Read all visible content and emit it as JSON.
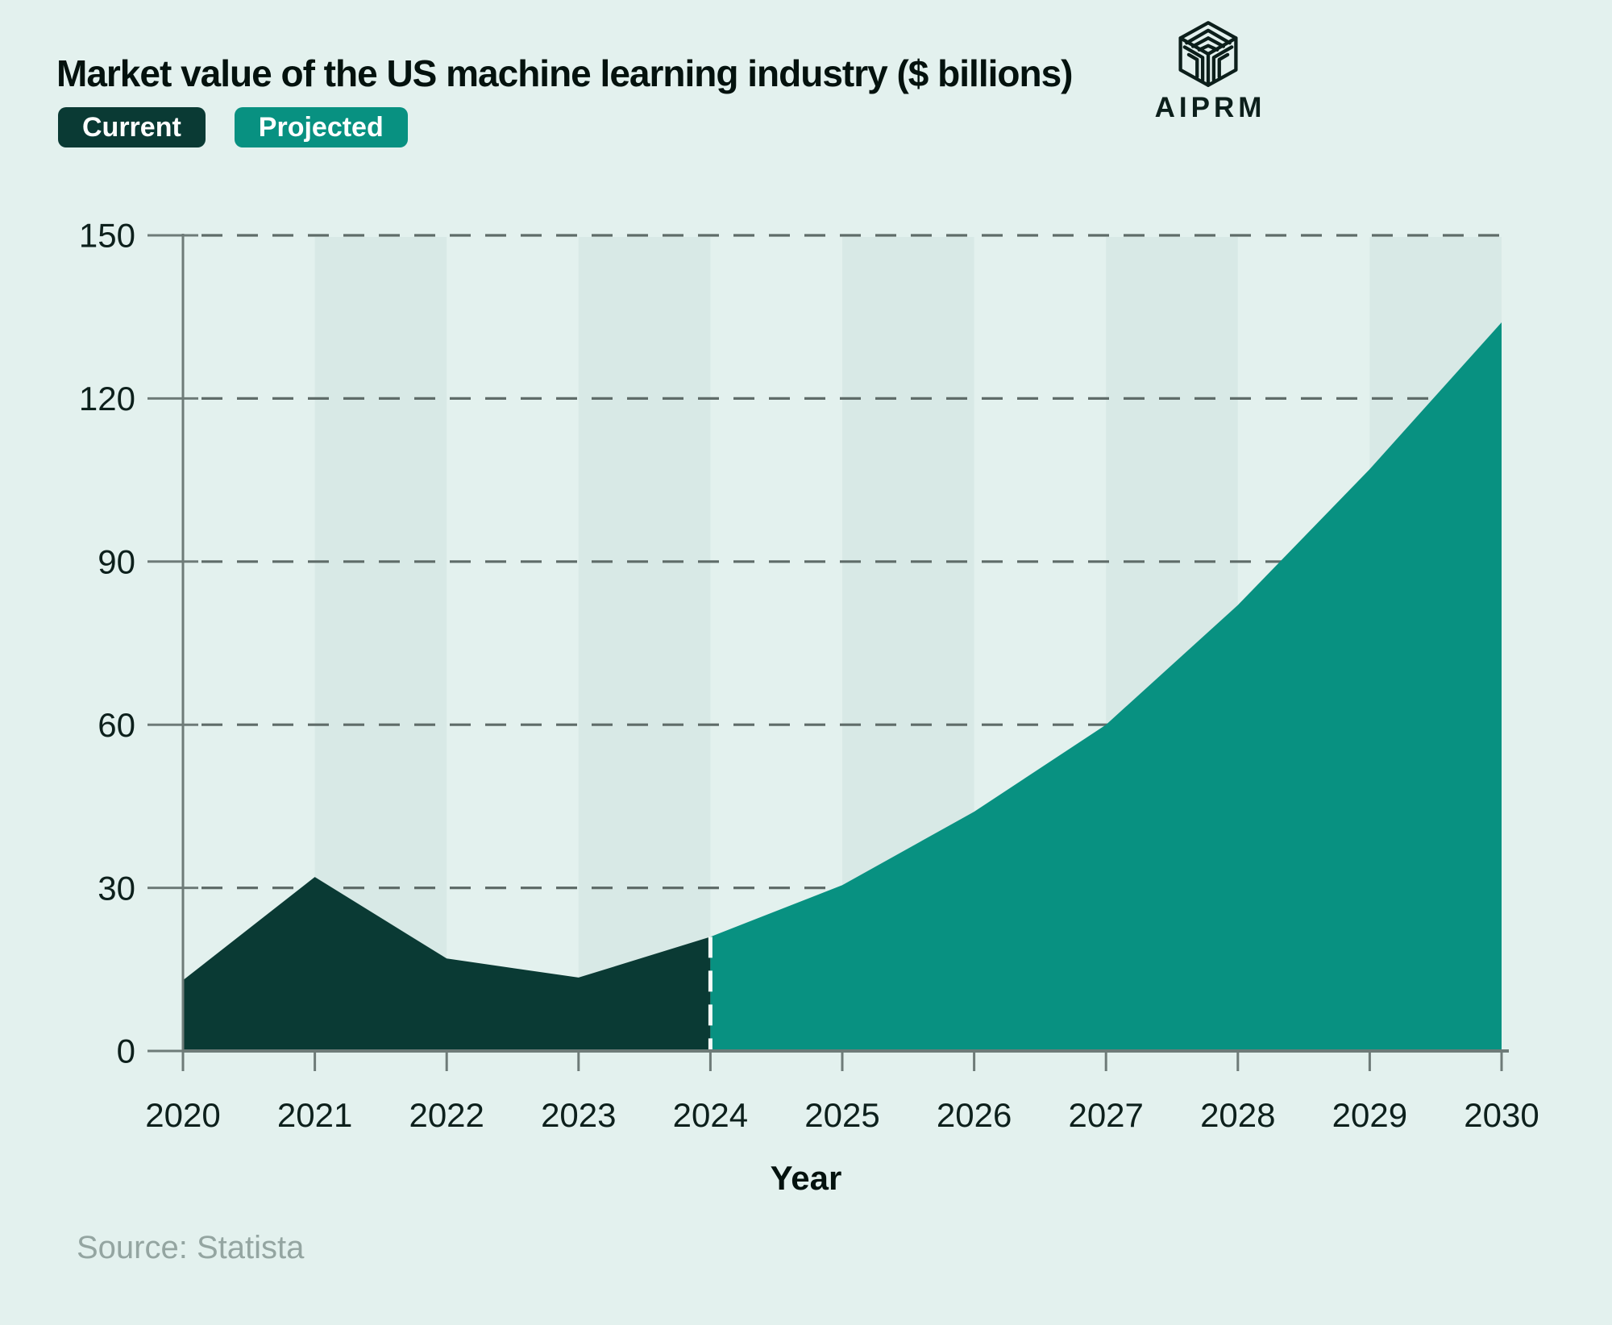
{
  "page": {
    "background": "#e3f1ee"
  },
  "header": {
    "title": "Market value of the US machine learning industry ($ billions)",
    "logo_text": "AIPRM"
  },
  "legend": {
    "items": [
      {
        "label": "Current",
        "color": "#0a3a34",
        "text_color": "#ffffff"
      },
      {
        "label": "Projected",
        "color": "#089181",
        "text_color": "#ffffff"
      }
    ]
  },
  "footer": {
    "source": "Source: Statista"
  },
  "chart_data": {
    "type": "area",
    "title": "Market value of the US machine learning industry ($ billions)",
    "xlabel": "Year",
    "ylabel": "",
    "x_ticks": [
      2020,
      2021,
      2022,
      2023,
      2024,
      2025,
      2026,
      2027,
      2028,
      2029,
      2030
    ],
    "y_ticks": [
      0,
      30,
      60,
      90,
      120,
      150
    ],
    "ylim": [
      0,
      150
    ],
    "xlim": [
      2020,
      2030
    ],
    "grid": "horizontal-dashed",
    "legend_position": "top-left",
    "series": [
      {
        "name": "Current",
        "color": "#0a3a34",
        "x": [
          2020,
          2021,
          2022,
          2023,
          2024
        ],
        "values": [
          13,
          32,
          17,
          13.5,
          21
        ]
      },
      {
        "name": "Projected",
        "color": "#089181",
        "x": [
          2024,
          2025,
          2026,
          2027,
          2028,
          2029,
          2030
        ],
        "values": [
          21,
          30.5,
          44,
          60,
          82,
          107,
          134
        ]
      }
    ],
    "forecast_divider": {
      "x": 2024,
      "style": "white-dashed"
    },
    "shaded_band_intervals": [
      [
        2021,
        2022
      ],
      [
        2023,
        2024
      ],
      [
        2025,
        2026
      ],
      [
        2027,
        2028
      ],
      [
        2029,
        2030
      ]
    ],
    "colors": {
      "band": "#d8e9e6",
      "axis": "#6e7b78",
      "grid_dash": "#5f6c69",
      "tick_label": "#0d201c",
      "divider_dash": "#f4fbf8"
    }
  }
}
